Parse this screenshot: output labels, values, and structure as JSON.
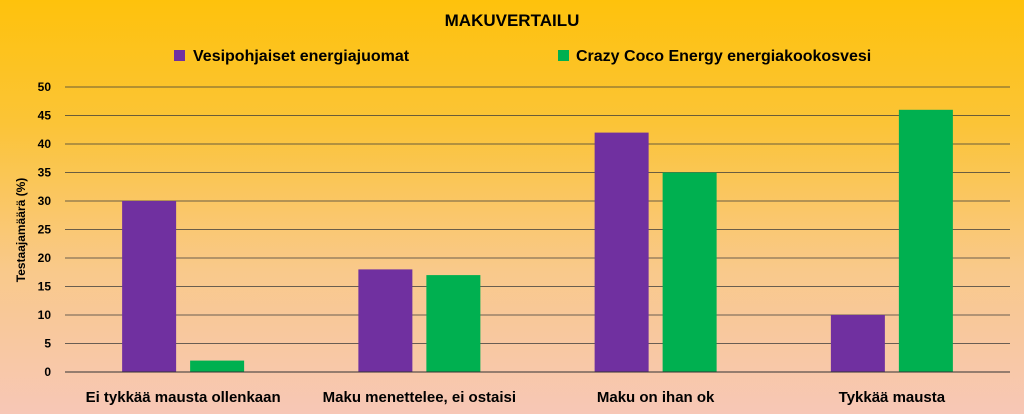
{
  "chart_data": {
    "type": "bar",
    "title": "MAKUVERTAILU",
    "ylabel": "Testaajamäärä (%)",
    "xlabel": "",
    "categories": [
      "Ei tykkää mausta ollenkaan",
      "Maku menettelee, ei ostaisi",
      "Maku on ihan ok",
      "Tykkää mausta"
    ],
    "series": [
      {
        "name": "Vesipohjaiset energiajuomat",
        "color": "#7030a0",
        "values": [
          30,
          18,
          42,
          10
        ]
      },
      {
        "name": "Crazy Coco Energy energiakookosvesi",
        "color": "#00b050",
        "values": [
          2,
          17,
          35,
          46
        ]
      }
    ],
    "ylim": [
      0,
      50
    ],
    "yticks": [
      0,
      5,
      10,
      15,
      20,
      25,
      30,
      35,
      40,
      45,
      50
    ],
    "grid": true,
    "legend_position": "top"
  }
}
